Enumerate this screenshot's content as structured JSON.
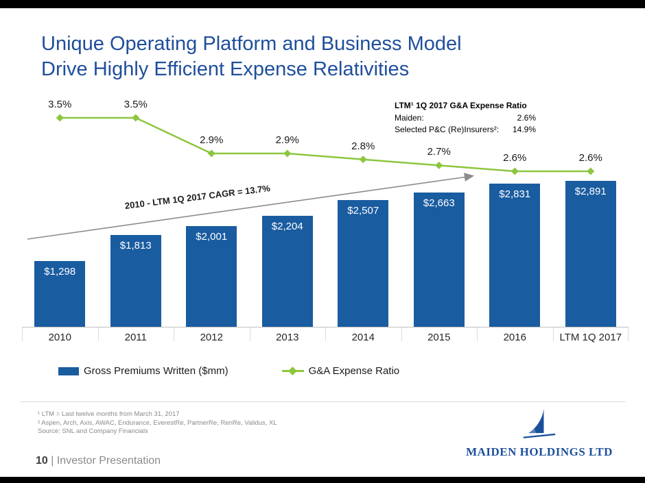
{
  "slide": {
    "title_line1": "Unique Operating Platform and Business Model",
    "title_line2": "Drive Highly Efficient Expense Relativities"
  },
  "chart_data": {
    "type": "bar",
    "categories": [
      "2010",
      "2011",
      "2012",
      "2013",
      "2014",
      "2015",
      "2016",
      "LTM 1Q 2017"
    ],
    "series": [
      {
        "name": "Gross Premiums Written ($mm)",
        "type": "bar",
        "color": "#1A5CA0",
        "values": [
          1298,
          1813,
          2001,
          2204,
          2507,
          2663,
          2831,
          2891
        ],
        "labels": [
          "$1,298",
          "$1,813",
          "$2,001",
          "$2,204",
          "$2,507",
          "$2,663",
          "$2,831",
          "$2,891"
        ]
      },
      {
        "name": "G&A Expense Ratio",
        "type": "line",
        "color": "#8CC63E",
        "values": [
          3.5,
          3.5,
          2.9,
          2.9,
          2.8,
          2.7,
          2.6,
          2.6
        ],
        "labels": [
          "3.5%",
          "3.5%",
          "2.9%",
          "2.9%",
          "2.8%",
          "2.7%",
          "2.6%",
          "2.6%"
        ]
      }
    ],
    "ylim": [
      0,
      3100
    ],
    "legend_position": "bottom",
    "annotation": "2010 - LTM 1Q 2017 CAGR = 13.7%",
    "info_box": {
      "title": "LTM¹ 1Q 2017 G&A Expense Ratio",
      "rows": [
        {
          "label": "Maiden:",
          "value": "2.6%"
        },
        {
          "label": "Selected P&C (Re)Insurers²:",
          "value": "14.9%"
        }
      ]
    }
  },
  "footnotes": [
    "¹ LTM = Last twelve months from March 31, 2017",
    "² Aspen, Arch, Axis, AWAC, Endurance, EverestRe, PartnerRe, RenRe, Validus, XL",
    "Source: SNL and Company Financials"
  ],
  "footer": {
    "page_number": "10",
    "separator": "|",
    "label": "Investor Presentation"
  },
  "logo": {
    "text": "MAIDEN HOLDINGS LTD"
  },
  "colors": {
    "bar": "#1A5CA0",
    "line": "#8CC63E",
    "title": "#1F4E9B",
    "logo": "#1B4F9C"
  }
}
